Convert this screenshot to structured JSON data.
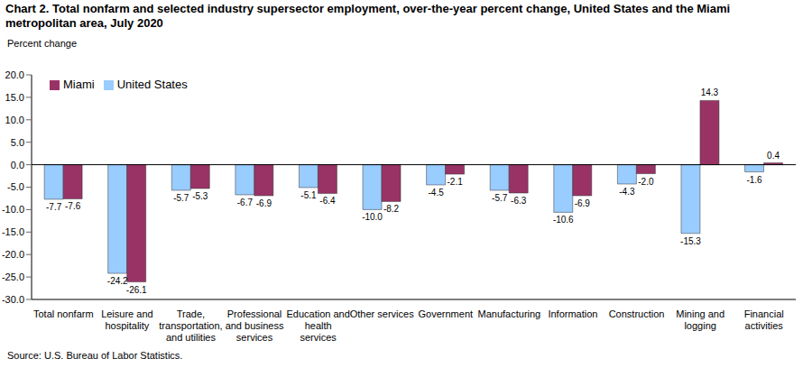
{
  "chart_data": {
    "type": "bar",
    "title": "Chart 2. Total nonfarm and selected industry supersector employment, over-the-year percent change, United States and the Miami metropolitan area, July 2020",
    "y_label": "Percent change",
    "source": "Source: U.S. Bureau of Labor Statistics.",
    "categories": [
      "Total nonfarm",
      "Leisure and hospitality",
      "Trade, transportation, and utilities",
      "Professional and business services",
      "Education and health services",
      "Other services",
      "Government",
      "Manufacturing",
      "Information",
      "Construction",
      "Mining and logging",
      "Financial activities"
    ],
    "series": [
      {
        "name": "United States",
        "color": "#99ccff",
        "values": [
          -7.7,
          -24.2,
          -5.7,
          -6.7,
          -5.1,
          -10.0,
          -4.5,
          -5.7,
          -10.6,
          -4.3,
          -15.3,
          -1.6
        ],
        "value_labels": [
          "-7.7",
          "-24.2",
          "-5.7",
          "-6.7",
          "-5.1",
          "-10.0",
          "-4.5",
          "-5.7",
          "-10.6",
          "-4.3",
          "-15.3",
          "-1.6"
        ]
      },
      {
        "name": "Miami",
        "color": "#993366",
        "values": [
          -7.6,
          -26.1,
          -5.3,
          -6.9,
          -6.4,
          -8.2,
          -2.1,
          -6.3,
          -6.9,
          -2.0,
          14.3,
          0.4
        ],
        "value_labels": [
          "-7.6",
          "-26.1",
          "-5.3",
          "-6.9",
          "-6.4",
          "-8.2",
          "-2.1",
          "-6.3",
          "-6.9",
          "-2.0",
          "14.3",
          "0.4"
        ]
      }
    ],
    "ylim": [
      -30,
      20
    ],
    "yticks": [
      {
        "value": -30,
        "label": "-30.0"
      },
      {
        "value": -25,
        "label": "-25.0"
      },
      {
        "value": -20,
        "label": "-20.0"
      },
      {
        "value": -15,
        "label": "-15.0"
      },
      {
        "value": -10,
        "label": "-10.0"
      },
      {
        "value": -5,
        "label": "-5.0"
      },
      {
        "value": 0,
        "label": "0.0"
      },
      {
        "value": 5,
        "label": "5.0"
      },
      {
        "value": 10,
        "label": "10.0"
      },
      {
        "value": 15,
        "label": "15.0"
      },
      {
        "value": 20,
        "label": "20.0"
      }
    ],
    "grid": false,
    "legend": "top-left",
    "data_labels": true
  }
}
